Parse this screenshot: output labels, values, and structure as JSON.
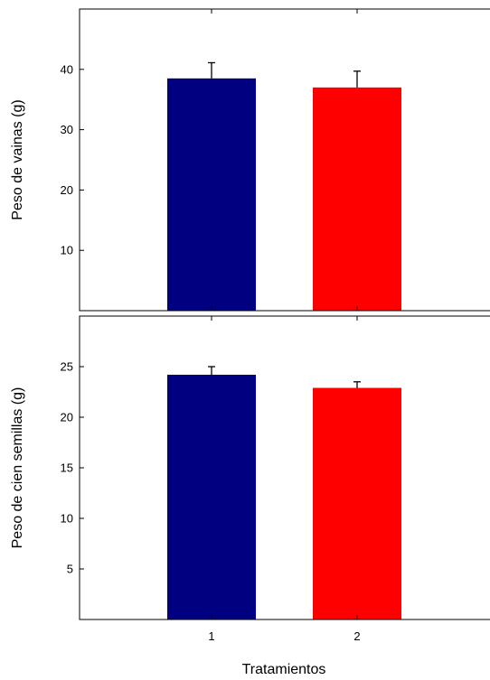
{
  "chart_data": [
    {
      "type": "bar",
      "categories": [
        "1",
        "2"
      ],
      "values": [
        38.5,
        37.0
      ],
      "errors": [
        2.6,
        2.7
      ],
      "colors": [
        "#000080",
        "#ff0000"
      ],
      "ylabel": "Peso de vainas (g)",
      "ylim": [
        0,
        50
      ],
      "yticks": [
        "10",
        "20",
        "30",
        "40"
      ],
      "grid": false
    },
    {
      "type": "bar",
      "categories": [
        "1",
        "2"
      ],
      "values": [
        24.2,
        22.9
      ],
      "errors": [
        0.8,
        0.6
      ],
      "colors": [
        "#000080",
        "#ff0000"
      ],
      "ylabel": "Peso de cien semillas (g)",
      "ylim": [
        0,
        30
      ],
      "yticks": [
        "5",
        "10",
        "15",
        "20",
        "25"
      ],
      "xlabel": "Tratamientos",
      "grid": false
    }
  ]
}
